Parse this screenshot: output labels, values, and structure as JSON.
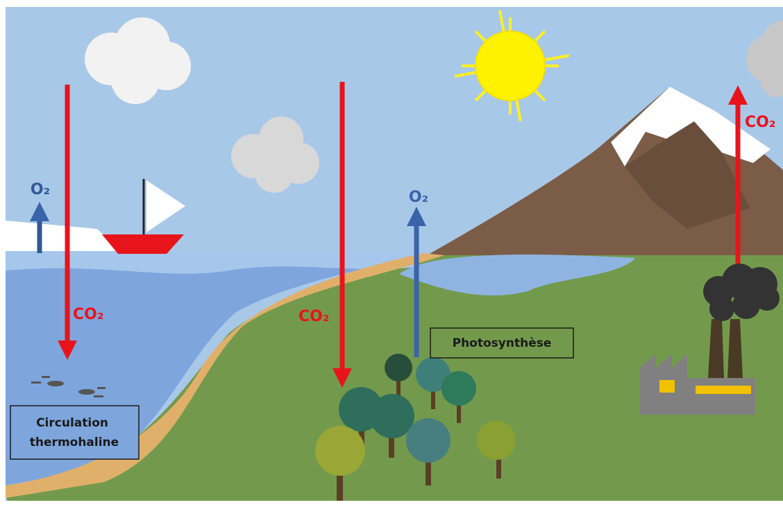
{
  "labels": {
    "ocean_o2": "O₂",
    "ocean_co2": "CO₂",
    "land_co2": "CO₂",
    "land_o2": "O₂",
    "factory_co2": "CO₂",
    "photosynthesis": "Photosynthèse",
    "circulation": [
      "Circulation",
      "thermohaline"
    ]
  }
}
